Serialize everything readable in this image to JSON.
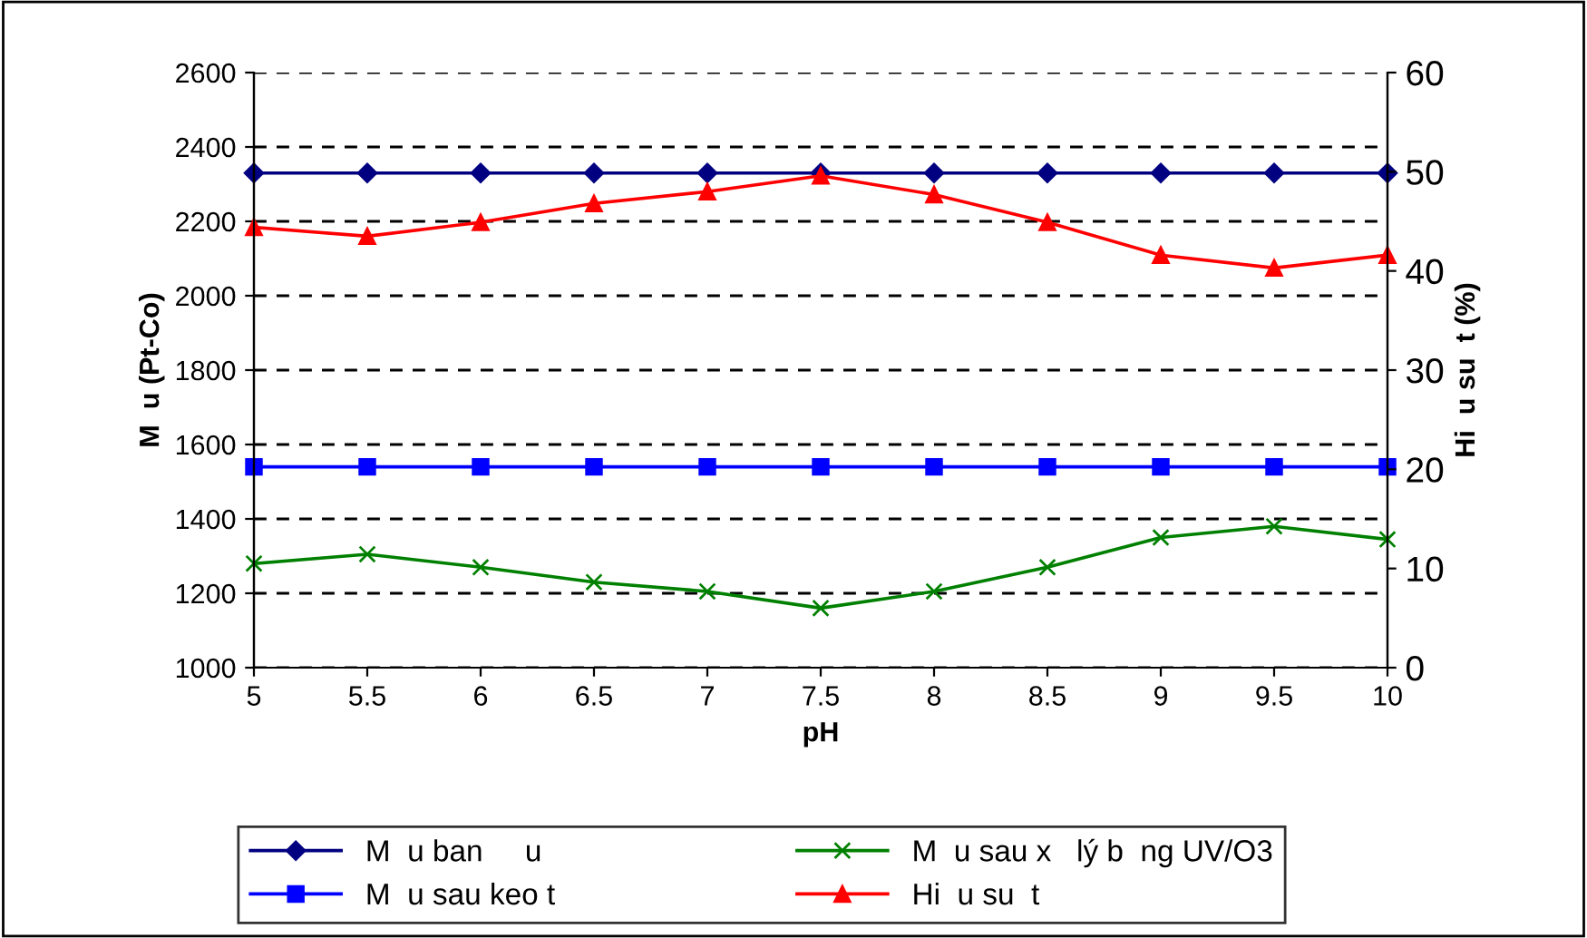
{
  "chart_data": {
    "type": "line",
    "xlabel": "pH",
    "ylabel": "M  u (Pt-Co)",
    "y2label": "Hi  u su  t (%)",
    "x": [
      5,
      5.5,
      6,
      6.5,
      7,
      7.5,
      8,
      8.5,
      9,
      9.5,
      10
    ],
    "xlim": [
      5,
      10
    ],
    "xticks": [
      5,
      5.5,
      6,
      6.5,
      7,
      7.5,
      8,
      8.5,
      9,
      9.5,
      10
    ],
    "ylim": [
      1000,
      2600
    ],
    "yticks": [
      1000,
      1200,
      1400,
      1600,
      1800,
      2000,
      2200,
      2400,
      2600
    ],
    "y2lim": [
      0,
      60
    ],
    "y2ticks": [
      0,
      10,
      20,
      30,
      40,
      50,
      60
    ],
    "grid": "y",
    "legend": "bottom",
    "line_style": "solid",
    "series": [
      {
        "name": "M  u ban     u",
        "color": "#000080",
        "marker": "diamond",
        "values": [
          2330,
          2330,
          2330,
          2330,
          2330,
          2330,
          2330,
          2330,
          2330,
          2330,
          2330
        ]
      },
      {
        "name": "M  u sau keo t",
        "color": "#0000ff",
        "marker": "square",
        "values": [
          1540,
          1540,
          1540,
          1540,
          1540,
          1540,
          1540,
          1540,
          1540,
          1540,
          1540
        ]
      },
      {
        "name": "M  u sau x   lý b  ng UV/O3",
        "color": "#008000",
        "marker": "cross",
        "values": [
          1280,
          1305,
          1270,
          1230,
          1205,
          1160,
          1205,
          1270,
          1350,
          1380,
          1345
        ]
      },
      {
        "name": "Hi  u su  t",
        "color": "#ff0000",
        "marker": "triangle",
        "axis": "y2",
        "values": [
          44.4,
          43.5,
          44.9,
          46.8,
          48.0,
          49.6,
          47.7,
          44.9,
          41.6,
          40.3,
          41.6
        ]
      }
    ]
  }
}
